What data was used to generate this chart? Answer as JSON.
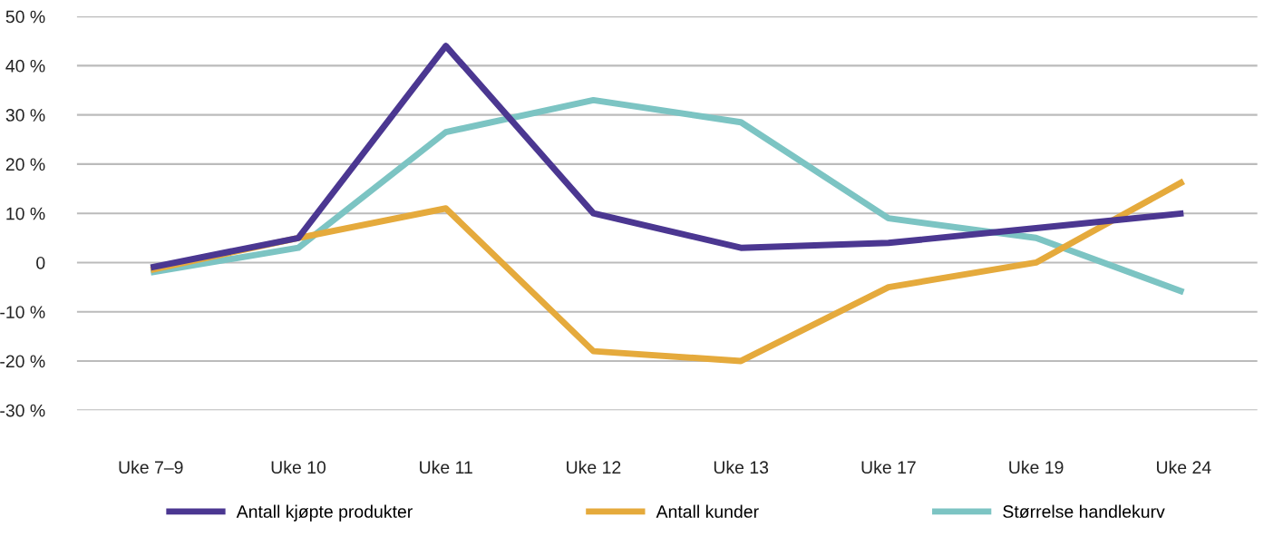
{
  "chart_data": {
    "type": "line",
    "categories": [
      "Uke 7–9",
      "Uke 10",
      "Uke 11",
      "Uke 12",
      "Uke 13",
      "Uke 17",
      "Uke 19",
      "Uke 24"
    ],
    "series": [
      {
        "name": "Antall kjøpte produkter",
        "color": "#4b3791",
        "values": [
          -1,
          5,
          44,
          10,
          3,
          4,
          7,
          10
        ]
      },
      {
        "name": "Antall kunder",
        "color": "#e5aa3c",
        "values": [
          -1.5,
          5,
          11,
          -18,
          -20,
          -5,
          0,
          16.5
        ]
      },
      {
        "name": "Størrelse handlekurv",
        "color": "#7cc4c3",
        "values": [
          -2,
          3,
          26.5,
          33,
          28.5,
          9,
          5,
          -6
        ]
      }
    ],
    "ylim": [
      -30,
      50
    ],
    "yticks": [
      {
        "value": -30,
        "label": "-30 %"
      },
      {
        "value": -20,
        "label": "-20 %"
      },
      {
        "value": -10,
        "label": "-10 %"
      },
      0,
      {
        "value": 10,
        "label": "10 %"
      },
      {
        "value": 20,
        "label": "20 %"
      },
      {
        "value": 30,
        "label": "30 %"
      },
      {
        "value": 40,
        "label": "40 %"
      },
      {
        "value": 50,
        "label": "50 %"
      }
    ],
    "grid": "y",
    "legend": "bottom",
    "marker": "none",
    "line_style": "solid"
  }
}
